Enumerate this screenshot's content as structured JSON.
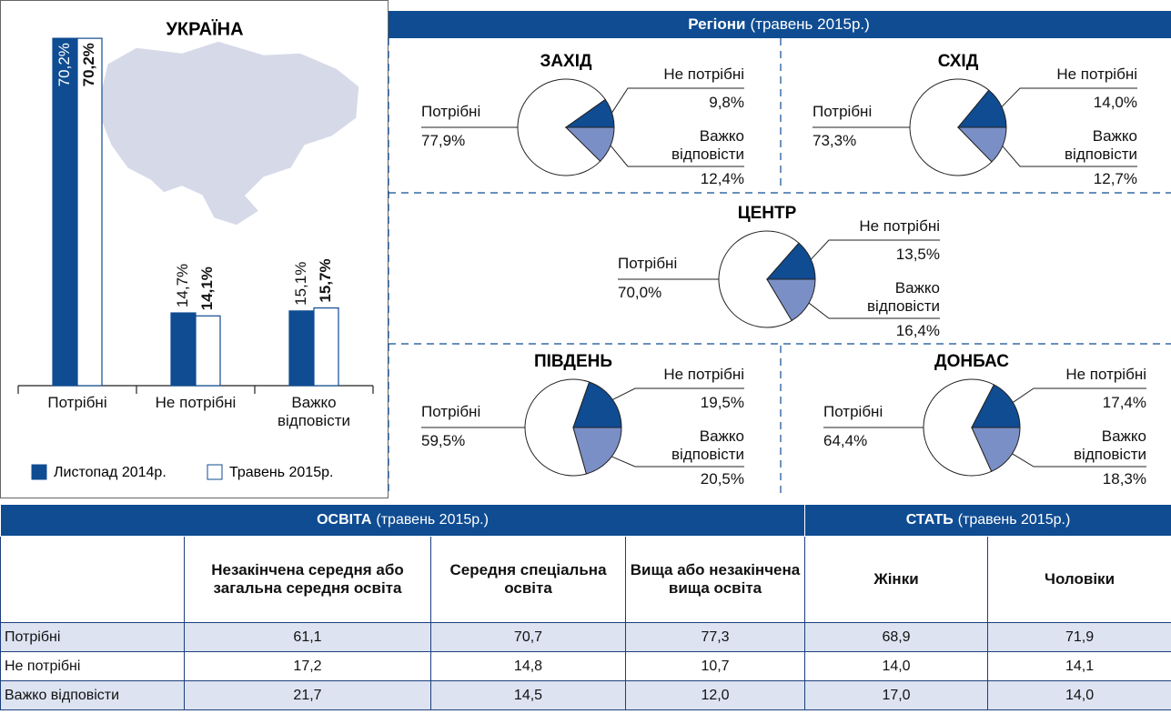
{
  "chart_data": [
    {
      "type": "bar",
      "title": "УКРАЇНА",
      "categories": [
        "Потрібні",
        "Не потрібні",
        "Важко відповісти"
      ],
      "series": [
        {
          "name": "Листопад 2014р.",
          "color": "#0f4c92",
          "values": [
            70.2,
            14.7,
            15.1
          ],
          "value_labels": [
            "70,2%",
            "14,7%",
            "15,1%"
          ]
        },
        {
          "name": "Травень 2015р.",
          "color": "#ffffff",
          "values": [
            70.2,
            14.1,
            15.7
          ],
          "value_labels": [
            "70,2%",
            "14,1%",
            "15,7%"
          ]
        }
      ],
      "legend": "bottom"
    },
    {
      "type": "pie",
      "title": "ЗАХІД",
      "categories": [
        "Потрібні",
        "Не потрібні",
        "Важко відповісти"
      ],
      "values": [
        77.9,
        9.8,
        12.4
      ],
      "value_labels": [
        "77,9%",
        "9,8%",
        "12,4%"
      ],
      "colors": [
        "#ffffff",
        "#0f4c92",
        "#7b8fc7"
      ]
    },
    {
      "type": "pie",
      "title": "СХІД",
      "categories": [
        "Потрібні",
        "Не потрібні",
        "Важко відповісти"
      ],
      "values": [
        73.3,
        14.0,
        12.7
      ],
      "value_labels": [
        "73,3%",
        "14,0%",
        "12,7%"
      ],
      "colors": [
        "#ffffff",
        "#0f4c92",
        "#7b8fc7"
      ]
    },
    {
      "type": "pie",
      "title": "ЦЕНТР",
      "categories": [
        "Потрібні",
        "Не потрібні",
        "Важко відповісти"
      ],
      "values": [
        70.0,
        13.5,
        16.4
      ],
      "value_labels": [
        "70,0%",
        "13,5%",
        "16,4%"
      ],
      "colors": [
        "#ffffff",
        "#0f4c92",
        "#7b8fc7"
      ]
    },
    {
      "type": "pie",
      "title": "ПІВДЕНЬ",
      "categories": [
        "Потрібні",
        "Не потрібні",
        "Важко відповісти"
      ],
      "values": [
        59.5,
        19.5,
        20.5
      ],
      "value_labels": [
        "59,5%",
        "19,5%",
        "20,5%"
      ],
      "colors": [
        "#ffffff",
        "#0f4c92",
        "#7b8fc7"
      ]
    },
    {
      "type": "pie",
      "title": "ДОНБАС",
      "categories": [
        "Потрібні",
        "Не потрібні",
        "Важко відповісти"
      ],
      "values": [
        64.4,
        17.4,
        18.3
      ],
      "value_labels": [
        "64,4%",
        "17,4%",
        "18,3%"
      ],
      "colors": [
        "#ffffff",
        "#0f4c92",
        "#7b8fc7"
      ]
    }
  ],
  "regions_header": {
    "title": "Регіони",
    "subtitle": "(травень 2015р.)"
  },
  "table": {
    "groups": [
      {
        "title": "ОСВІТА",
        "subtitle": "(травень 2015р.)"
      },
      {
        "title": "СТАТЬ",
        "subtitle": "(травень 2015р.)"
      }
    ],
    "columns": [
      "Незакінчена середня або загальна середня освіта",
      "Середня спеціальна освіта",
      "Вища або незакінчена вища освіта",
      "Жінки",
      "Чоловіки"
    ],
    "rows": [
      [
        "Потрібні",
        "61,1",
        "70,7",
        "77,3",
        "68,9",
        "71,9"
      ],
      [
        "Не потрібні",
        "17,2",
        "14,8",
        "10,7",
        "14,0",
        "14,1"
      ],
      [
        "Важко відповісти",
        "21,7",
        "14,5",
        "12,0",
        "17,0",
        "14,0"
      ]
    ]
  }
}
